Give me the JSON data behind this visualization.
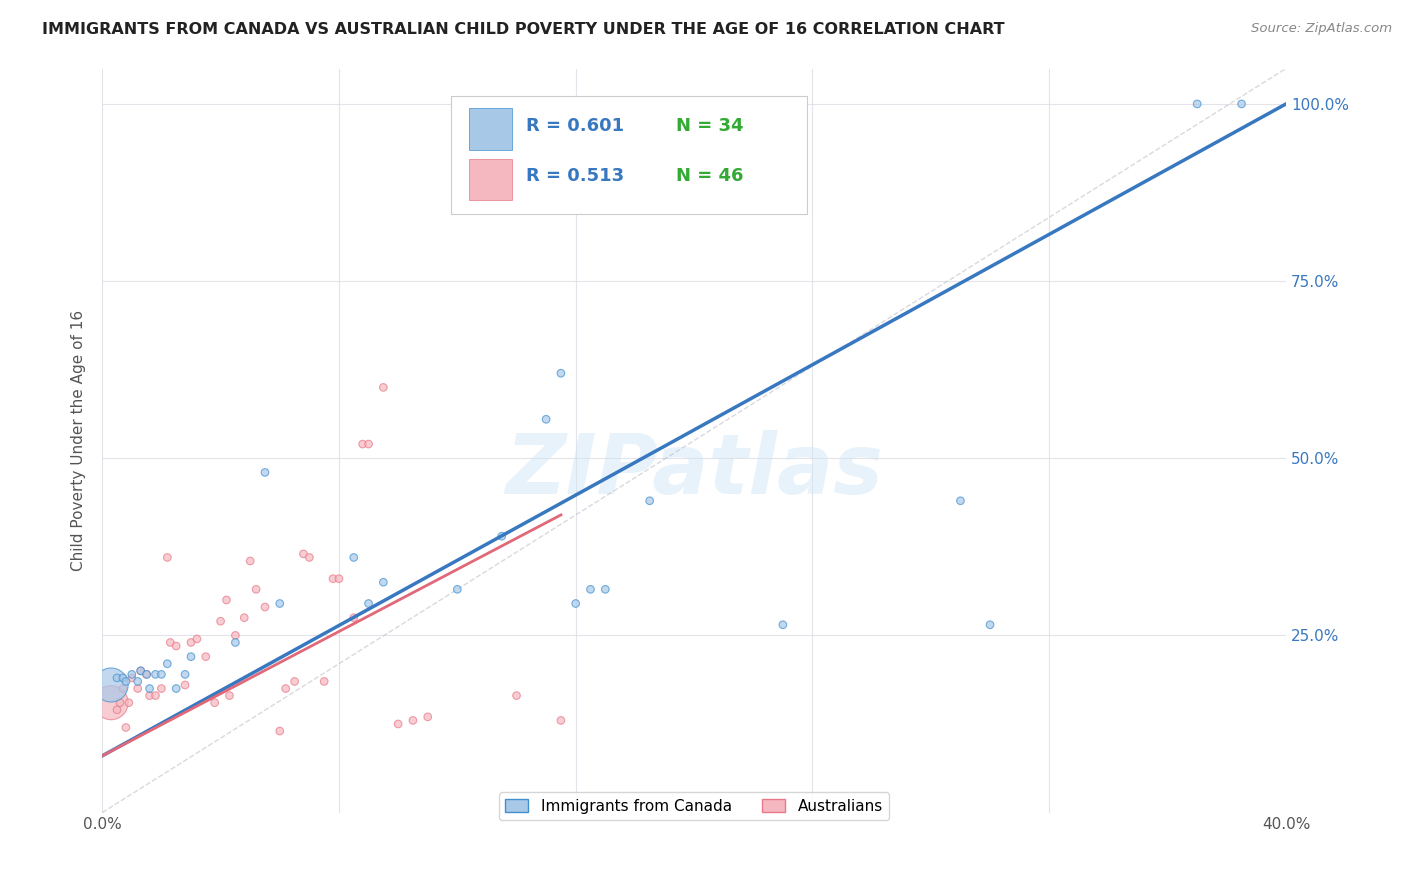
{
  "title": "IMMIGRANTS FROM CANADA VS AUSTRALIAN CHILD POVERTY UNDER THE AGE OF 16 CORRELATION CHART",
  "source": "Source: ZipAtlas.com",
  "ylabel": "Child Poverty Under the Age of 16",
  "x_min": 0.0,
  "x_max": 0.4,
  "y_min": 0.0,
  "y_max": 1.05,
  "x_ticks": [
    0.0,
    0.08,
    0.16,
    0.24,
    0.32,
    0.4
  ],
  "x_tick_labels": [
    "0.0%",
    "",
    "",
    "",
    "",
    "40.0%"
  ],
  "y_ticks": [
    0.25,
    0.5,
    0.75,
    1.0
  ],
  "y_tick_labels": [
    "25.0%",
    "50.0%",
    "75.0%",
    "100.0%"
  ],
  "legend_label_blue": "Immigrants from Canada",
  "legend_label_pink": "Australians",
  "r_blue": "R = 0.601",
  "n_blue": "N = 34",
  "r_pink": "R = 0.513",
  "n_pink": "N = 46",
  "color_blue": "#a8c8e8",
  "color_blue_dark": "#4090d0",
  "color_blue_line": "#3878c0",
  "color_pink": "#f5b8c0",
  "color_pink_dark": "#e87888",
  "color_pink_line": "#e06878",
  "watermark": "ZIPatlas",
  "blue_line_x": [
    0.0,
    0.4
  ],
  "blue_line_y": [
    0.08,
    1.0
  ],
  "pink_line_x": [
    0.0,
    0.155
  ],
  "pink_line_y": [
    0.08,
    0.42
  ],
  "diag_line_x": [
    0.0,
    0.4
  ],
  "diag_line_y": [
    0.0,
    1.05
  ],
  "blue_scatter_x": [
    0.003,
    0.005,
    0.007,
    0.008,
    0.01,
    0.012,
    0.013,
    0.015,
    0.016,
    0.018,
    0.02,
    0.022,
    0.025,
    0.028,
    0.03,
    0.045,
    0.055,
    0.06,
    0.085,
    0.09,
    0.095,
    0.12,
    0.135,
    0.15,
    0.155,
    0.16,
    0.165,
    0.17,
    0.185,
    0.23,
    0.29,
    0.3,
    0.37,
    0.385
  ],
  "blue_scatter_y": [
    0.18,
    0.19,
    0.19,
    0.185,
    0.195,
    0.185,
    0.2,
    0.195,
    0.175,
    0.195,
    0.195,
    0.21,
    0.175,
    0.195,
    0.22,
    0.24,
    0.48,
    0.295,
    0.36,
    0.295,
    0.325,
    0.315,
    0.39,
    0.555,
    0.62,
    0.295,
    0.315,
    0.315,
    0.44,
    0.265,
    0.44,
    0.265,
    1.0,
    1.0
  ],
  "blue_scatter_size": [
    600,
    30,
    30,
    30,
    30,
    30,
    30,
    30,
    30,
    30,
    30,
    30,
    30,
    30,
    30,
    30,
    30,
    30,
    30,
    30,
    30,
    30,
    30,
    30,
    30,
    30,
    30,
    30,
    30,
    30,
    30,
    30,
    30,
    30
  ],
  "pink_scatter_x": [
    0.003,
    0.005,
    0.006,
    0.007,
    0.008,
    0.009,
    0.01,
    0.012,
    0.013,
    0.015,
    0.016,
    0.018,
    0.02,
    0.022,
    0.023,
    0.025,
    0.028,
    0.03,
    0.032,
    0.035,
    0.038,
    0.04,
    0.042,
    0.043,
    0.045,
    0.048,
    0.05,
    0.052,
    0.055,
    0.06,
    0.062,
    0.065,
    0.068,
    0.07,
    0.075,
    0.078,
    0.08,
    0.085,
    0.088,
    0.09,
    0.095,
    0.1,
    0.105,
    0.11,
    0.14,
    0.155
  ],
  "pink_scatter_y": [
    0.155,
    0.145,
    0.155,
    0.175,
    0.12,
    0.155,
    0.19,
    0.175,
    0.2,
    0.195,
    0.165,
    0.165,
    0.175,
    0.36,
    0.24,
    0.235,
    0.18,
    0.24,
    0.245,
    0.22,
    0.155,
    0.27,
    0.3,
    0.165,
    0.25,
    0.275,
    0.355,
    0.315,
    0.29,
    0.115,
    0.175,
    0.185,
    0.365,
    0.36,
    0.185,
    0.33,
    0.33,
    0.275,
    0.52,
    0.52,
    0.6,
    0.125,
    0.13,
    0.135,
    0.165,
    0.13
  ],
  "pink_scatter_size": [
    600,
    30,
    30,
    30,
    30,
    30,
    30,
    30,
    30,
    30,
    30,
    30,
    30,
    30,
    30,
    30,
    30,
    30,
    30,
    30,
    30,
    30,
    30,
    30,
    30,
    30,
    30,
    30,
    30,
    30,
    30,
    30,
    30,
    30,
    30,
    30,
    30,
    30,
    30,
    30,
    30,
    30,
    30,
    30,
    30,
    30
  ]
}
